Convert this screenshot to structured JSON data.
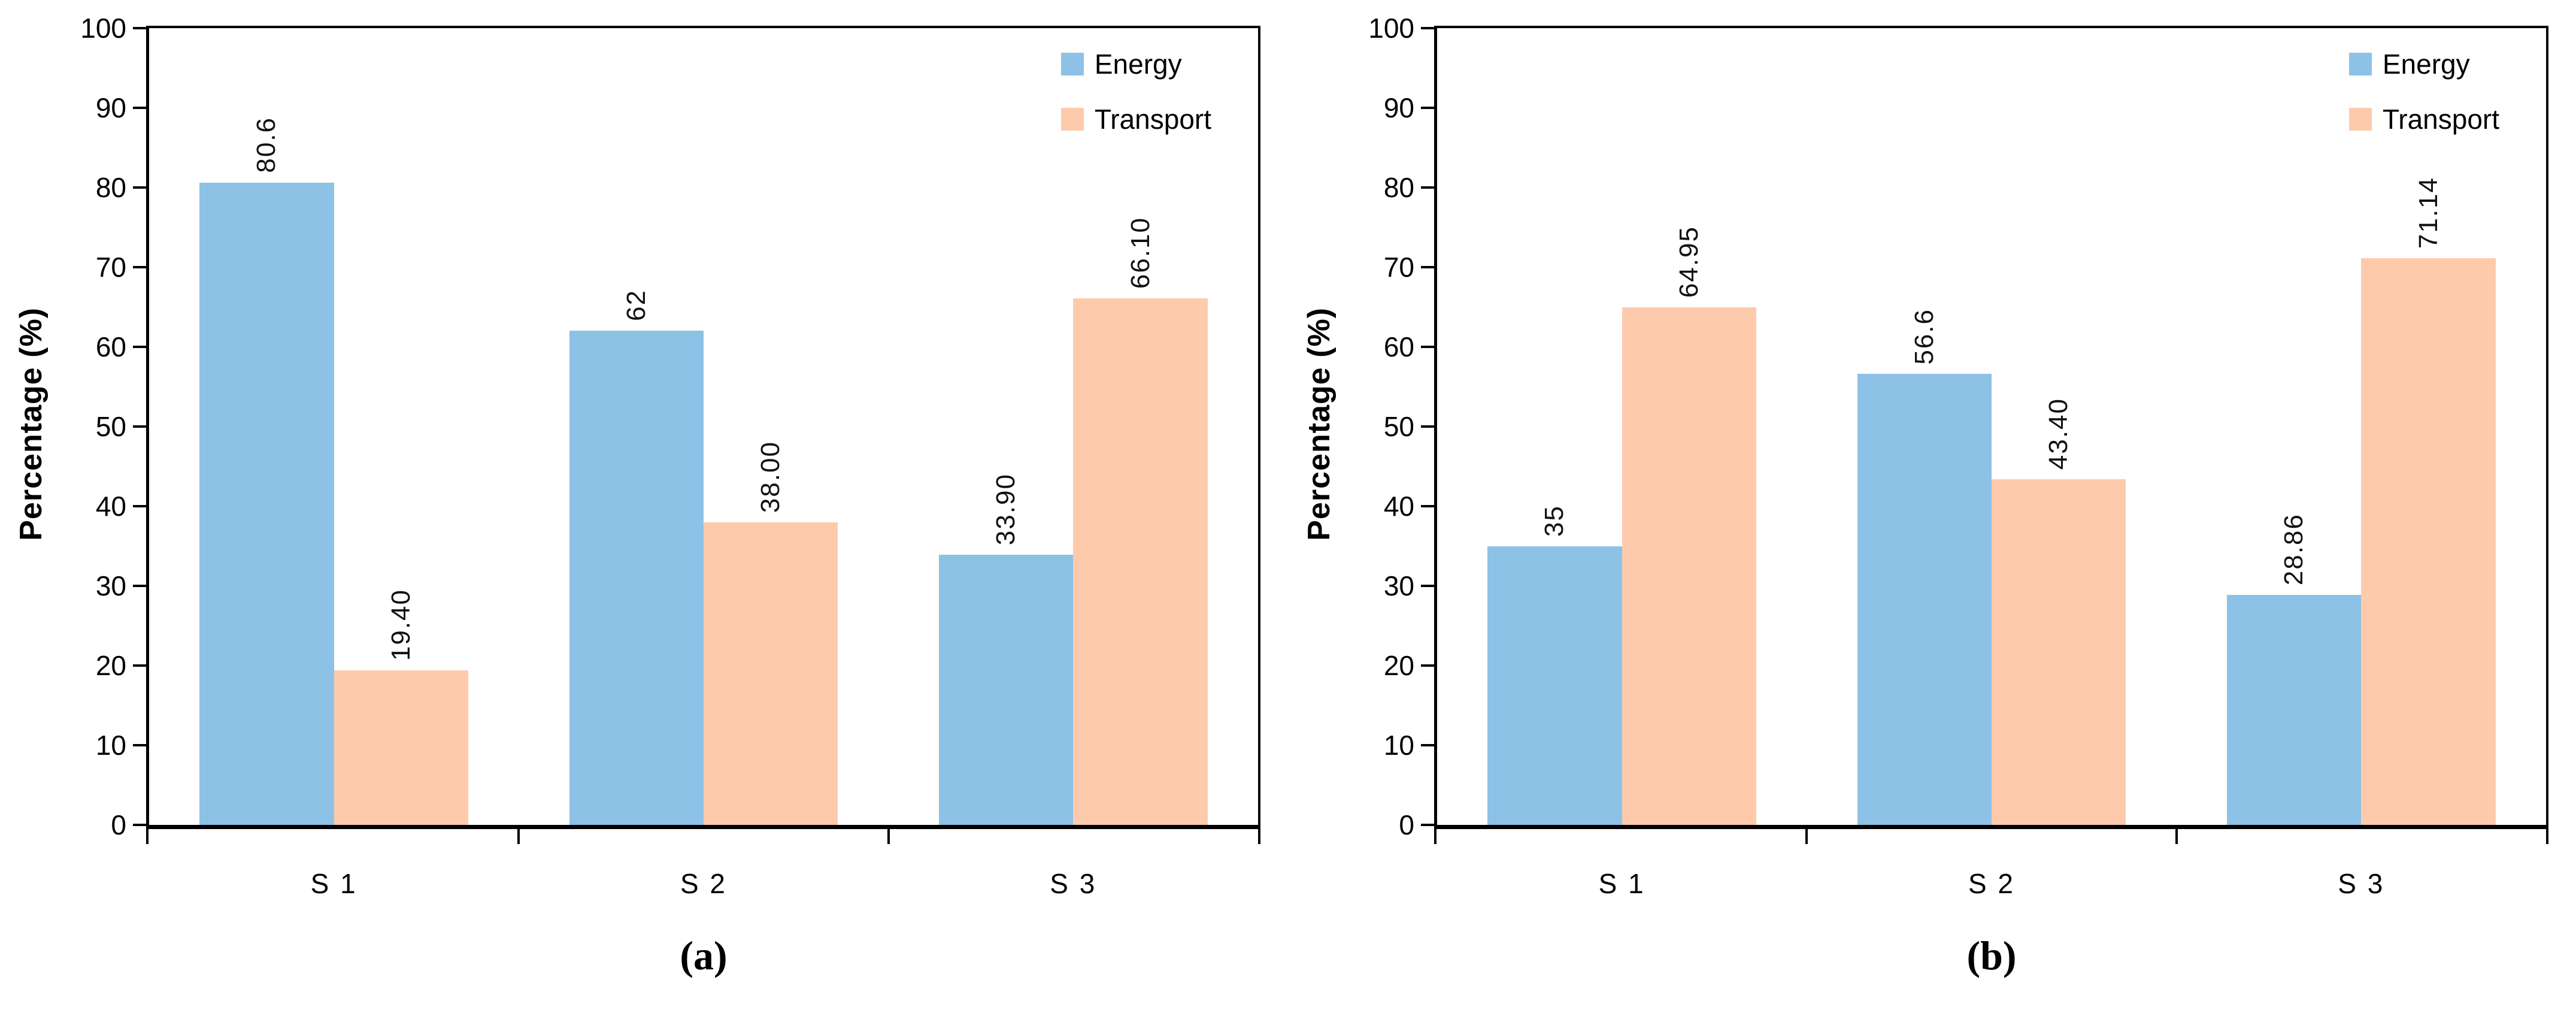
{
  "figure": {
    "background": "#ffffff",
    "captions": {
      "a": "(a)",
      "b": "(b)"
    }
  },
  "chart_data": [
    {
      "type": "bar",
      "panel": "(a)",
      "title": "",
      "categories": [
        "S 1",
        "S 2",
        "S 3"
      ],
      "series": [
        {
          "name": "Energy",
          "color": "#8dc2e6",
          "values": [
            80.6,
            62,
            33.9
          ],
          "value_labels": [
            "80.6",
            "62",
            "33.90"
          ]
        },
        {
          "name": "Transport",
          "color": "#fdcbac",
          "values": [
            19.4,
            38,
            66.1
          ],
          "value_labels": [
            "19.40",
            "38.00",
            "66.10"
          ]
        }
      ],
      "xlabel": "",
      "ylabel": "Percentage (%)",
      "ylim": [
        0,
        100
      ],
      "ytick_step": 10,
      "grid": false,
      "legend_position": "top-right",
      "axis_color": "#000000"
    },
    {
      "type": "bar",
      "panel": "(b)",
      "title": "",
      "categories": [
        "S 1",
        "S 2",
        "S 3"
      ],
      "series": [
        {
          "name": "Energy",
          "color": "#8dc2e6",
          "values": [
            35,
            56.6,
            28.86
          ],
          "value_labels": [
            "35",
            "56.6",
            "28.86"
          ]
        },
        {
          "name": "Transport",
          "color": "#fdcbac",
          "values": [
            64.95,
            43.4,
            71.14
          ],
          "value_labels": [
            "64.95",
            "43.40",
            "71.14"
          ]
        }
      ],
      "xlabel": "",
      "ylabel": "Percentage (%)",
      "ylim": [
        0,
        100
      ],
      "ytick_step": 10,
      "grid": false,
      "legend_position": "top-right",
      "axis_color": "#000000"
    }
  ]
}
